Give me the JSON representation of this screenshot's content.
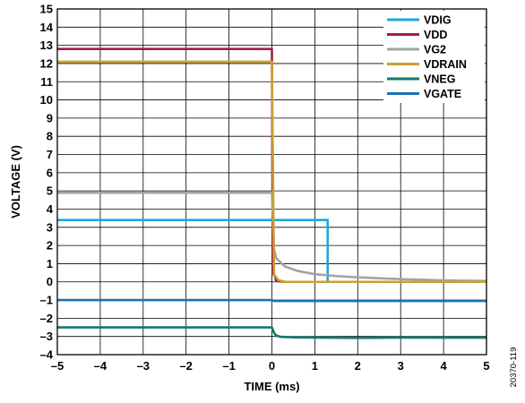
{
  "chart_data": {
    "type": "line",
    "xlabel": "TIME (ms)",
    "ylabel": "VOLTAGE (V)",
    "xlim": [
      -5,
      5
    ],
    "ylim": [
      -4,
      15
    ],
    "xticks": [
      -5,
      -4,
      -3,
      -2,
      -1,
      0,
      1,
      2,
      3,
      4,
      5
    ],
    "yticks": [
      -4,
      -3,
      -2,
      -1,
      0,
      1,
      2,
      3,
      4,
      5,
      6,
      7,
      8,
      9,
      10,
      11,
      12,
      13,
      14,
      15
    ],
    "xtick_labels": [
      "–5",
      "–4",
      "–3",
      "–2",
      "–1",
      "0",
      "1",
      "2",
      "3",
      "4",
      "5"
    ],
    "ytick_labels": [
      "–4",
      "–3",
      "–2",
      "–1",
      "0",
      "1",
      "2",
      "3",
      "4",
      "5",
      "6",
      "7",
      "8",
      "9",
      "10",
      "11",
      "12",
      "13",
      "14",
      "15"
    ],
    "grid": true,
    "legend_position": "top-right",
    "figure_id": "20370-119",
    "series": [
      {
        "name": "VDIG",
        "color": "#1ba7dc",
        "x": [
          -5,
          1.3,
          1.3,
          5
        ],
        "y": [
          3.4,
          3.4,
          0.0,
          0.0
        ]
      },
      {
        "name": "VDD",
        "color": "#a01e46",
        "x": [
          -5,
          0.0,
          0.02,
          0.08,
          0.1,
          0.3,
          5
        ],
        "y": [
          12.8,
          12.8,
          0.5,
          0.25,
          0.05,
          0.0,
          0.0
        ]
      },
      {
        "name": "VG2",
        "color": "#a3a3a3",
        "x": [
          -5,
          0.0,
          0.05,
          0.1,
          0.3,
          0.6,
          1.0,
          1.5,
          2.0,
          3.0,
          4.0,
          5.0
        ],
        "y": [
          4.9,
          4.9,
          1.8,
          1.3,
          0.85,
          0.6,
          0.42,
          0.32,
          0.25,
          0.15,
          0.08,
          0.05
        ]
      },
      {
        "name": "VDRAIN",
        "color": "#c9a032",
        "x": [
          -5,
          0.0,
          0.05,
          0.15,
          0.3,
          5
        ],
        "y": [
          12.1,
          12.1,
          0.4,
          0.1,
          0.0,
          0.0
        ]
      },
      {
        "name": "VNEG",
        "color": "#117a6e",
        "x": [
          -5,
          0.0,
          0.05,
          0.1,
          0.2,
          0.5,
          1.0,
          2.0,
          3.0,
          5.0
        ],
        "y": [
          -2.5,
          -2.5,
          -2.8,
          -2.95,
          -3.02,
          -3.05,
          -3.06,
          -3.08,
          -3.06,
          -3.07
        ]
      },
      {
        "name": "VGATE",
        "color": "#1a72b7",
        "x": [
          -5,
          0.0,
          0.05,
          5
        ],
        "y": [
          -1.0,
          -1.0,
          -1.05,
          -1.05
        ]
      }
    ]
  }
}
